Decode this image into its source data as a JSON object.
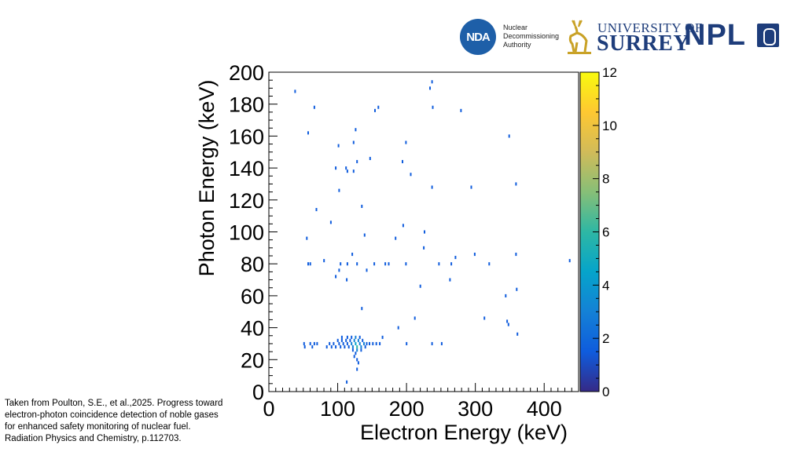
{
  "logos": {
    "nda_abbrev": "NDA",
    "nda_lines": [
      "Nuclear",
      "Decommissioning",
      "Authority"
    ],
    "surrey_line1": "UNIVERSITY OF",
    "surrey_line2": "SURREY",
    "npl": "NPL"
  },
  "caption": {
    "lines": [
      "Taken from Poulton, S.E., et al.,2025. Progress toward",
      "electron-photon coincidence detection of noble gases",
      "for enhanced safety monitoring of nuclear fuel.",
      "Radiation Physics and Chemistry, p.112703."
    ]
  },
  "colors": {
    "palette": [
      "#352a87",
      "#0f5cdd",
      "#1481d6",
      "#06a4ca",
      "#2eb7a4",
      "#87bf77",
      "#d1bb59",
      "#fec832",
      "#f9fb0e"
    ]
  },
  "chart_data": {
    "type": "heatmap",
    "title": "",
    "xlabel": "Electron Energy (keV)",
    "ylabel": "Photon Energy (keV)",
    "xlim": [
      0,
      450
    ],
    "ylim": [
      0,
      200
    ],
    "xticks": [
      0,
      100,
      200,
      300,
      400
    ],
    "yticks": [
      0,
      20,
      40,
      60,
      80,
      100,
      120,
      140,
      160,
      180,
      200
    ],
    "zlim": [
      0,
      12
    ],
    "zticks": [
      0,
      2,
      4,
      6,
      8,
      10,
      12
    ],
    "bin_width_x": 2,
    "bin_width_y": 2,
    "points": [
      [
        37,
        187,
        1
      ],
      [
        65,
        177,
        1
      ],
      [
        56,
        161,
        1
      ],
      [
        233,
        189,
        1
      ],
      [
        236,
        193,
        1
      ],
      [
        237,
        177,
        1
      ],
      [
        278,
        175,
        1
      ],
      [
        153,
        175,
        1
      ],
      [
        158,
        177,
        1
      ],
      [
        125,
        163,
        1
      ],
      [
        122,
        155,
        1
      ],
      [
        100,
        153,
        1
      ],
      [
        198,
        155,
        1
      ],
      [
        348,
        159,
        1
      ],
      [
        146,
        145,
        1
      ],
      [
        127,
        143,
        1
      ],
      [
        193,
        143,
        1
      ],
      [
        96,
        139,
        1
      ],
      [
        111,
        139,
        1
      ],
      [
        113,
        137,
        1
      ],
      [
        122,
        137,
        1
      ],
      [
        205,
        135,
        1
      ],
      [
        101,
        125,
        1
      ],
      [
        236,
        127,
        1
      ],
      [
        293,
        127,
        1
      ],
      [
        358,
        129,
        1
      ],
      [
        68,
        113,
        1
      ],
      [
        134,
        115,
        1
      ],
      [
        89,
        105,
        1
      ],
      [
        194,
        103,
        1
      ],
      [
        225,
        99,
        1
      ],
      [
        138,
        97,
        1
      ],
      [
        54,
        95,
        1
      ],
      [
        183,
        95,
        1
      ],
      [
        224,
        89,
        1
      ],
      [
        120,
        85,
        1
      ],
      [
        298,
        85,
        1
      ],
      [
        358,
        85,
        1
      ],
      [
        79,
        81,
        1
      ],
      [
        436,
        81,
        1
      ],
      [
        270,
        83,
        1
      ],
      [
        56,
        79,
        1
      ],
      [
        59,
        79,
        1
      ],
      [
        103,
        79,
        1
      ],
      [
        113,
        79,
        1
      ],
      [
        127,
        79,
        1
      ],
      [
        152,
        79,
        1
      ],
      [
        168,
        79,
        1
      ],
      [
        173,
        79,
        1
      ],
      [
        198,
        79,
        1
      ],
      [
        246,
        79,
        1
      ],
      [
        264,
        79,
        1
      ],
      [
        319,
        79,
        1
      ],
      [
        101,
        75,
        1
      ],
      [
        141,
        75,
        1
      ],
      [
        96,
        71,
        1
      ],
      [
        112,
        69,
        1
      ],
      [
        262,
        69,
        1
      ],
      [
        219,
        65,
        1
      ],
      [
        359,
        63,
        1
      ],
      [
        343,
        59,
        1
      ],
      [
        134,
        51,
        1
      ],
      [
        211,
        45,
        1
      ],
      [
        312,
        45,
        1
      ],
      [
        345,
        43,
        1
      ],
      [
        347,
        41,
        1
      ],
      [
        187,
        39,
        1
      ],
      [
        360,
        35,
        1
      ],
      [
        164,
        33,
        1
      ],
      [
        50,
        29,
        1
      ],
      [
        51,
        27,
        1
      ],
      [
        59,
        29,
        1
      ],
      [
        62,
        27,
        1
      ],
      [
        65,
        29,
        1
      ],
      [
        69,
        29,
        1
      ],
      [
        83,
        27,
        1
      ],
      [
        87,
        29,
        1
      ],
      [
        90,
        27,
        1
      ],
      [
        93,
        29,
        1
      ],
      [
        96,
        27,
        1
      ],
      [
        99,
        31,
        1
      ],
      [
        101,
        29,
        1
      ],
      [
        103,
        27,
        1
      ],
      [
        105,
        31,
        1
      ],
      [
        107,
        29,
        1
      ],
      [
        109,
        27,
        1
      ],
      [
        111,
        31,
        1
      ],
      [
        113,
        29,
        1
      ],
      [
        115,
        27,
        1
      ],
      [
        117,
        31,
        1
      ],
      [
        119,
        29,
        2
      ],
      [
        121,
        27,
        3
      ],
      [
        123,
        31,
        2
      ],
      [
        125,
        29,
        4
      ],
      [
        127,
        27,
        5
      ],
      [
        129,
        31,
        2
      ],
      [
        131,
        29,
        3
      ],
      [
        133,
        27,
        2
      ],
      [
        135,
        31,
        1
      ],
      [
        137,
        29,
        2
      ],
      [
        139,
        27,
        1
      ],
      [
        141,
        29,
        1
      ],
      [
        145,
        29,
        1
      ],
      [
        150,
        29,
        1
      ],
      [
        155,
        29,
        1
      ],
      [
        160,
        29,
        1
      ],
      [
        199,
        29,
        1
      ],
      [
        236,
        29,
        1
      ],
      [
        250,
        29,
        1
      ],
      [
        105,
        33,
        1
      ],
      [
        113,
        33,
        1
      ],
      [
        119,
        33,
        1
      ],
      [
        125,
        33,
        2
      ],
      [
        131,
        33,
        1
      ],
      [
        121,
        25,
        1
      ],
      [
        127,
        25,
        2
      ],
      [
        133,
        25,
        1
      ],
      [
        123,
        21,
        1
      ],
      [
        127,
        19,
        1
      ],
      [
        129,
        17,
        1
      ],
      [
        125,
        23,
        1
      ],
      [
        127,
        13,
        1
      ],
      [
        112,
        5,
        1
      ]
    ]
  }
}
